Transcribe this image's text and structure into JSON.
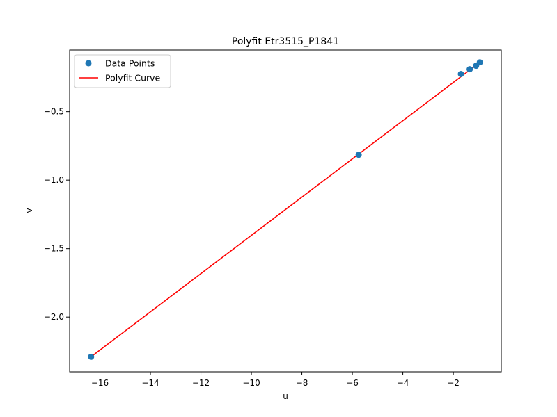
{
  "chart_data": {
    "type": "scatter",
    "title": "Polyfit Etr3515_P1841",
    "xlabel": "u",
    "ylabel": "v",
    "xlim": [
      -17.2,
      -0.1
    ],
    "ylim": [
      -2.4,
      -0.05
    ],
    "xticks": [
      -16,
      -14,
      -12,
      -10,
      -8,
      -6,
      -4,
      -2
    ],
    "xtick_labels": [
      "−16",
      "−14",
      "−12",
      "−10",
      "−8",
      "−6",
      "−4",
      "−2"
    ],
    "yticks": [
      -0.5,
      -1.0,
      -1.5,
      -2.0
    ],
    "ytick_labels": [
      "−0.5",
      "−1.0",
      "−1.5",
      "−2.0"
    ],
    "grid": false,
    "legend_position": "top-left",
    "series": [
      {
        "name": "Data Points",
        "kind": "scatter",
        "color": "#1f77b4",
        "points": [
          {
            "x": -16.35,
            "y": -2.29
          },
          {
            "x": -5.75,
            "y": -0.815
          },
          {
            "x": -1.7,
            "y": -0.225
          },
          {
            "x": -1.35,
            "y": -0.19
          },
          {
            "x": -1.1,
            "y": -0.165
          },
          {
            "x": -0.95,
            "y": -0.14
          }
        ]
      },
      {
        "name": "Polyfit Curve",
        "kind": "line",
        "color": "#ff0000",
        "points": [
          {
            "x": -16.35,
            "y": -2.29
          },
          {
            "x": -0.95,
            "y": -0.14
          }
        ]
      }
    ]
  }
}
